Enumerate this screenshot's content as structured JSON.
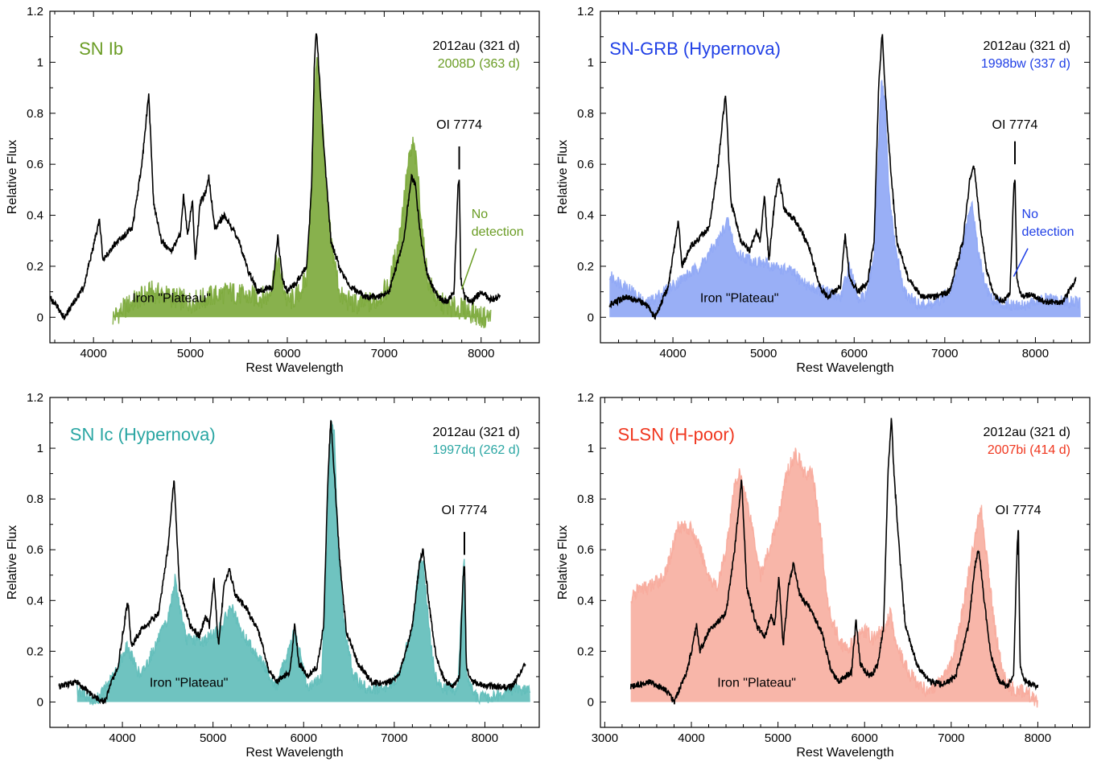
{
  "colors": {
    "reference": "#000000",
    "ib": "#6a9c24",
    "grb": "#1f3fe6",
    "ic": "#2aa6a3",
    "slsn": "#f0361e",
    "ib_fill": "#7ba83a",
    "grb_fill": "#8ea6f5",
    "ic_fill": "#5fbdb9",
    "slsn_fill": "#f7a99a"
  },
  "chart_data": [
    {
      "type": "line",
      "id": "ib",
      "title": "SN Ib",
      "xlabel": "Rest Wavelength",
      "ylabel": "Relative Flux",
      "xlim": [
        3550,
        8600
      ],
      "ylim": [
        -0.1,
        1.2
      ],
      "xticks": [
        4000,
        5000,
        6000,
        7000,
        8000
      ],
      "yticks": [
        0,
        0.2,
        0.4,
        0.6,
        0.8,
        1,
        1.2
      ],
      "legend": {
        "placement": "top-right",
        "entries": [
          "2012au (321 d)",
          "2008D (363 d)"
        ]
      },
      "annotations": {
        "line_label": "OI 7774",
        "plateau": "Iron \"Plateau\"",
        "no_detection": [
          "No",
          "detection"
        ]
      },
      "line_marker_x": 7774,
      "series": [
        {
          "name": "2012au (321 d)",
          "role": "reference",
          "x": [
            3550,
            3700,
            3900,
            4000,
            4060,
            4100,
            4200,
            4400,
            4500,
            4570,
            4620,
            4700,
            4800,
            4900,
            4930,
            4970,
            5020,
            5050,
            5100,
            5150,
            5190,
            5250,
            5350,
            5500,
            5600,
            5700,
            5850,
            5900,
            5950,
            6000,
            6100,
            6200,
            6250,
            6280,
            6300,
            6330,
            6380,
            6450,
            6550,
            6650,
            6800,
            6950,
            7050,
            7200,
            7280,
            7320,
            7380,
            7450,
            7550,
            7650,
            7720,
            7760,
            7775,
            7790,
            7830,
            7900,
            8000,
            8100,
            8200
          ],
          "y": [
            0.08,
            0.0,
            0.12,
            0.28,
            0.38,
            0.22,
            0.28,
            0.35,
            0.6,
            0.88,
            0.45,
            0.3,
            0.26,
            0.33,
            0.48,
            0.32,
            0.46,
            0.22,
            0.45,
            0.48,
            0.55,
            0.35,
            0.4,
            0.3,
            0.18,
            0.1,
            0.12,
            0.32,
            0.15,
            0.1,
            0.14,
            0.2,
            0.5,
            1.0,
            1.13,
            0.95,
            0.65,
            0.3,
            0.18,
            0.12,
            0.08,
            0.08,
            0.1,
            0.3,
            0.55,
            0.52,
            0.3,
            0.16,
            0.08,
            0.06,
            0.1,
            0.5,
            0.55,
            0.15,
            0.08,
            0.06,
            0.1,
            0.07,
            0.08
          ]
        },
        {
          "name": "2008D (363 d)",
          "role": "comparison",
          "x": [
            4200,
            4400,
            4600,
            4800,
            5000,
            5200,
            5400,
            5600,
            5800,
            5900,
            6000,
            6100,
            6200,
            6250,
            6280,
            6310,
            6350,
            6400,
            6450,
            6550,
            6700,
            6900,
            7050,
            7150,
            7250,
            7300,
            7350,
            7400,
            7450,
            7550,
            7700,
            7850,
            8000,
            8100
          ],
          "y": [
            0.0,
            0.06,
            0.1,
            0.08,
            0.06,
            0.08,
            0.1,
            0.08,
            0.08,
            0.22,
            0.06,
            0.08,
            0.15,
            0.5,
            0.9,
            1.02,
            0.85,
            0.5,
            0.3,
            0.08,
            0.05,
            0.06,
            0.12,
            0.3,
            0.6,
            0.68,
            0.55,
            0.3,
            0.15,
            0.06,
            0.04,
            0.03,
            0.0,
            0.0
          ]
        }
      ]
    },
    {
      "type": "line",
      "id": "grb",
      "title": "SN-GRB (Hypernova)",
      "xlabel": "Rest Wavelength",
      "ylabel": "Relative Flux",
      "xlim": [
        3200,
        8600
      ],
      "ylim": [
        -0.1,
        1.2
      ],
      "xticks": [
        4000,
        5000,
        6000,
        7000,
        8000
      ],
      "yticks": [
        0,
        0.2,
        0.4,
        0.6,
        0.8,
        1,
        1.2
      ],
      "legend": {
        "placement": "top-right",
        "entries": [
          "2012au (321 d)",
          "1998bw (337 d)"
        ]
      },
      "annotations": {
        "line_label": "OI 7774",
        "plateau": "Iron \"Plateau\"",
        "no_detection": [
          "No",
          "detection"
        ]
      },
      "line_marker_x": 7774,
      "series": [
        {
          "name": "2012au (321 d)",
          "role": "reference",
          "x": [
            3300,
            3500,
            3700,
            3800,
            3950,
            4060,
            4100,
            4200,
            4400,
            4500,
            4580,
            4640,
            4750,
            4850,
            4920,
            4960,
            5010,
            5060,
            5120,
            5170,
            5230,
            5350,
            5500,
            5620,
            5700,
            5850,
            5900,
            5950,
            6050,
            6150,
            6220,
            6270,
            6310,
            6340,
            6400,
            6470,
            6600,
            6750,
            6900,
            7050,
            7200,
            7280,
            7320,
            7380,
            7460,
            7560,
            7650,
            7720,
            7760,
            7775,
            7795,
            7850,
            7950,
            8100,
            8300,
            8450
          ],
          "y": [
            0.05,
            0.08,
            0.05,
            0.0,
            0.12,
            0.38,
            0.2,
            0.28,
            0.35,
            0.6,
            0.88,
            0.45,
            0.3,
            0.26,
            0.34,
            0.3,
            0.47,
            0.22,
            0.45,
            0.55,
            0.42,
            0.38,
            0.28,
            0.12,
            0.08,
            0.12,
            0.32,
            0.15,
            0.1,
            0.14,
            0.3,
            0.9,
            1.12,
            0.9,
            0.6,
            0.3,
            0.15,
            0.08,
            0.08,
            0.1,
            0.3,
            0.55,
            0.6,
            0.4,
            0.18,
            0.08,
            0.06,
            0.1,
            0.5,
            0.55,
            0.15,
            0.08,
            0.09,
            0.06,
            0.06,
            0.15
          ]
        },
        {
          "name": "1998bw (337 d)",
          "role": "comparison",
          "x": [
            3300,
            3500,
            3700,
            3900,
            4100,
            4300,
            4500,
            4600,
            4700,
            4900,
            5100,
            5300,
            5500,
            5700,
            5850,
            5950,
            6050,
            6150,
            6220,
            6260,
            6300,
            6340,
            6380,
            6450,
            6550,
            6700,
            6900,
            7050,
            7150,
            7250,
            7300,
            7350,
            7450,
            7550,
            7700,
            7900,
            8100,
            8300,
            8500
          ],
          "y": [
            0.16,
            0.12,
            0.05,
            0.1,
            0.15,
            0.2,
            0.3,
            0.38,
            0.25,
            0.22,
            0.2,
            0.18,
            0.12,
            0.1,
            0.08,
            0.2,
            0.06,
            0.1,
            0.25,
            0.6,
            0.92,
            0.85,
            0.5,
            0.28,
            0.1,
            0.05,
            0.05,
            0.1,
            0.2,
            0.38,
            0.45,
            0.3,
            0.12,
            0.06,
            0.05,
            0.05,
            0.07,
            0.06,
            0.06
          ]
        }
      ]
    },
    {
      "type": "line",
      "id": "ic",
      "title": "SN Ic (Hypernova)",
      "xlabel": "Rest Wavelength",
      "ylabel": "Relative Flux",
      "xlim": [
        3200,
        8600
      ],
      "ylim": [
        -0.1,
        1.2
      ],
      "xticks": [
        4000,
        5000,
        6000,
        7000,
        8000
      ],
      "yticks": [
        0,
        0.2,
        0.4,
        0.6,
        0.8,
        1,
        1.2
      ],
      "legend": {
        "placement": "top-right",
        "entries": [
          "2012au (321 d)",
          "1997dq (262 d)"
        ]
      },
      "annotations": {
        "line_label": "OI 7774",
        "plateau": "Iron \"Plateau\""
      },
      "line_marker_x": 7774,
      "series": [
        {
          "name": "2012au (321 d)",
          "role": "reference",
          "x": [
            3300,
            3500,
            3650,
            3800,
            3950,
            4060,
            4100,
            4200,
            4400,
            4500,
            4570,
            4630,
            4750,
            4850,
            4920,
            4960,
            5010,
            5060,
            5120,
            5180,
            5250,
            5350,
            5500,
            5620,
            5700,
            5850,
            5900,
            5950,
            6050,
            6150,
            6220,
            6270,
            6300,
            6330,
            6400,
            6470,
            6600,
            6750,
            6900,
            7050,
            7200,
            7280,
            7320,
            7380,
            7460,
            7560,
            7650,
            7720,
            7760,
            7775,
            7795,
            7850,
            7950,
            8100,
            8300,
            8450
          ],
          "y": [
            0.06,
            0.08,
            0.03,
            0.0,
            0.14,
            0.4,
            0.22,
            0.28,
            0.35,
            0.6,
            0.88,
            0.45,
            0.3,
            0.26,
            0.34,
            0.3,
            0.49,
            0.22,
            0.45,
            0.52,
            0.42,
            0.38,
            0.28,
            0.12,
            0.08,
            0.12,
            0.3,
            0.15,
            0.1,
            0.14,
            0.3,
            0.9,
            1.12,
            0.95,
            0.55,
            0.28,
            0.15,
            0.08,
            0.07,
            0.1,
            0.3,
            0.55,
            0.6,
            0.4,
            0.18,
            0.08,
            0.06,
            0.1,
            0.5,
            0.55,
            0.15,
            0.08,
            0.07,
            0.06,
            0.06,
            0.15
          ]
        },
        {
          "name": "1997dq (262 d)",
          "role": "comparison",
          "x": [
            3500,
            3700,
            3900,
            4050,
            4200,
            4400,
            4500,
            4580,
            4700,
            4900,
            5100,
            5200,
            5300,
            5500,
            5700,
            5900,
            6050,
            6200,
            6260,
            6300,
            6340,
            6380,
            6450,
            6550,
            6700,
            6900,
            7050,
            7200,
            7280,
            7320,
            7380,
            7450,
            7550,
            7700,
            7760,
            7775,
            7795,
            7900,
            8100,
            8300,
            8500
          ],
          "y": [
            0.05,
            0.0,
            0.1,
            0.22,
            0.1,
            0.25,
            0.32,
            0.48,
            0.25,
            0.24,
            0.3,
            0.38,
            0.28,
            0.18,
            0.06,
            0.28,
            0.05,
            0.1,
            0.6,
            1.12,
            1.05,
            0.6,
            0.3,
            0.1,
            0.05,
            0.05,
            0.1,
            0.3,
            0.55,
            0.55,
            0.3,
            0.1,
            0.05,
            0.05,
            0.5,
            0.55,
            0.1,
            0.02,
            0.02,
            0.05,
            0.05
          ]
        }
      ]
    },
    {
      "type": "line",
      "id": "slsn",
      "title": "SLSN (H-poor)",
      "xlabel": "Rest Wavelength",
      "ylabel": "Relative Flux",
      "xlim": [
        2950,
        8600
      ],
      "ylim": [
        -0.1,
        1.2
      ],
      "xticks": [
        3000,
        4000,
        5000,
        6000,
        7000,
        8000
      ],
      "yticks": [
        0,
        0.2,
        0.4,
        0.6,
        0.8,
        1,
        1.2
      ],
      "legend": {
        "placement": "top-right",
        "entries": [
          "2012au (321 d)",
          "2007bi (414 d)"
        ]
      },
      "annotations": {
        "line_label": "OI 7774",
        "plateau": "Iron \"Plateau\""
      },
      "line_marker_x": 7774,
      "series": [
        {
          "name": "2012au (321 d)",
          "role": "reference",
          "x": [
            3300,
            3500,
            3700,
            3800,
            3950,
            4060,
            4100,
            4200,
            4400,
            4500,
            4580,
            4640,
            4750,
            4850,
            4920,
            4960,
            5010,
            5060,
            5120,
            5180,
            5250,
            5350,
            5500,
            5620,
            5700,
            5850,
            5900,
            5950,
            6050,
            6150,
            6220,
            6270,
            6310,
            6340,
            6400,
            6470,
            6600,
            6750,
            6900,
            7050,
            7200,
            7280,
            7320,
            7380,
            7460,
            7560,
            7650,
            7720,
            7760,
            7775,
            7795,
            7850,
            8000
          ],
          "y": [
            0.06,
            0.08,
            0.05,
            0.0,
            0.12,
            0.3,
            0.2,
            0.28,
            0.35,
            0.6,
            0.88,
            0.45,
            0.3,
            0.26,
            0.34,
            0.3,
            0.49,
            0.22,
            0.45,
            0.55,
            0.42,
            0.38,
            0.28,
            0.12,
            0.08,
            0.12,
            0.32,
            0.15,
            0.1,
            0.14,
            0.3,
            0.9,
            1.12,
            0.9,
            0.6,
            0.3,
            0.15,
            0.08,
            0.07,
            0.1,
            0.3,
            0.55,
            0.6,
            0.4,
            0.18,
            0.08,
            0.06,
            0.1,
            0.6,
            0.7,
            0.15,
            0.08,
            0.06
          ]
        },
        {
          "name": "2007bi (414 d)",
          "role": "comparison",
          "x": [
            3300,
            3400,
            3500,
            3700,
            3850,
            4000,
            4100,
            4200,
            4300,
            4400,
            4500,
            4550,
            4600,
            4700,
            4800,
            4900,
            5000,
            5100,
            5200,
            5250,
            5300,
            5400,
            5500,
            5550,
            5600,
            5700,
            5800,
            5900,
            6000,
            6100,
            6200,
            6300,
            6350,
            6400,
            6500,
            6600,
            6700,
            6800,
            6900,
            7000,
            7100,
            7200,
            7300,
            7350,
            7400,
            7500,
            7600,
            7700,
            7800,
            7900,
            8000
          ],
          "y": [
            0.4,
            0.45,
            0.45,
            0.5,
            0.7,
            0.68,
            0.6,
            0.5,
            0.45,
            0.6,
            0.85,
            0.9,
            0.85,
            0.7,
            0.5,
            0.6,
            0.72,
            0.9,
            0.98,
            0.95,
            0.9,
            0.9,
            0.65,
            0.45,
            0.35,
            0.25,
            0.2,
            0.25,
            0.28,
            0.25,
            0.28,
            0.35,
            0.25,
            0.2,
            0.12,
            0.08,
            0.05,
            0.05,
            0.08,
            0.15,
            0.3,
            0.5,
            0.7,
            0.75,
            0.6,
            0.3,
            0.1,
            0.05,
            0.05,
            0.03,
            0.0
          ]
        }
      ]
    }
  ]
}
